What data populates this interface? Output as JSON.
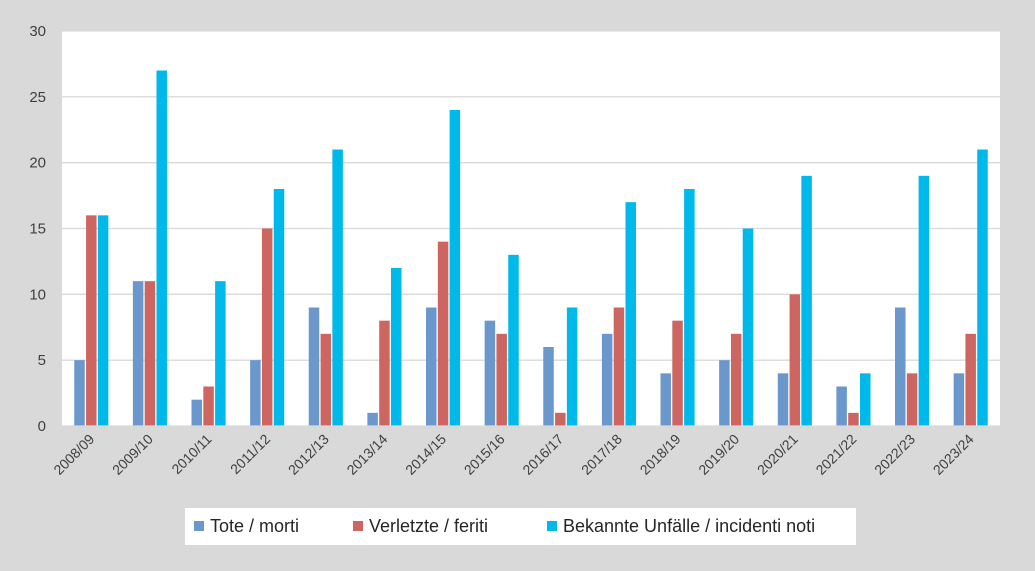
{
  "chart_data": {
    "type": "bar",
    "title": "",
    "xlabel": "",
    "ylabel": "",
    "ylim": [
      0,
      30
    ],
    "yticks": [
      0,
      5,
      10,
      15,
      20,
      25,
      30
    ],
    "grid": true,
    "legend_position": "bottom",
    "categories": [
      "2008/09",
      "2009/10",
      "2010/11",
      "2011/12",
      "2012/13",
      "2013/14",
      "2014/15",
      "2015/16",
      "2016/17",
      "2017/18",
      "2018/19",
      "2019/20",
      "2020/21",
      "2021/22",
      "2022/23",
      "2023/24"
    ],
    "series": [
      {
        "name": "Tote / morti",
        "color": "#6a97cc",
        "values": [
          5,
          11,
          2,
          5,
          9,
          1,
          9,
          8,
          6,
          7,
          4,
          5,
          4,
          3,
          9,
          4
        ]
      },
      {
        "name": "Verletzte / feriti",
        "color": "#cd6660",
        "values": [
          16,
          11,
          3,
          15,
          7,
          8,
          14,
          7,
          1,
          9,
          8,
          7,
          10,
          1,
          4,
          7
        ]
      },
      {
        "name": "Bekannte Unfälle / incidenti noti",
        "color": "#00b9eb",
        "values": [
          16,
          27,
          11,
          18,
          21,
          12,
          24,
          13,
          9,
          17,
          18,
          15,
          19,
          4,
          19,
          21
        ]
      }
    ]
  },
  "colors": {
    "background": "#d9d9d9",
    "plot_area": "#ffffff",
    "gridline": "#d9d9d9",
    "axis_text": "#404040",
    "legend_bg": "#ffffff"
  }
}
